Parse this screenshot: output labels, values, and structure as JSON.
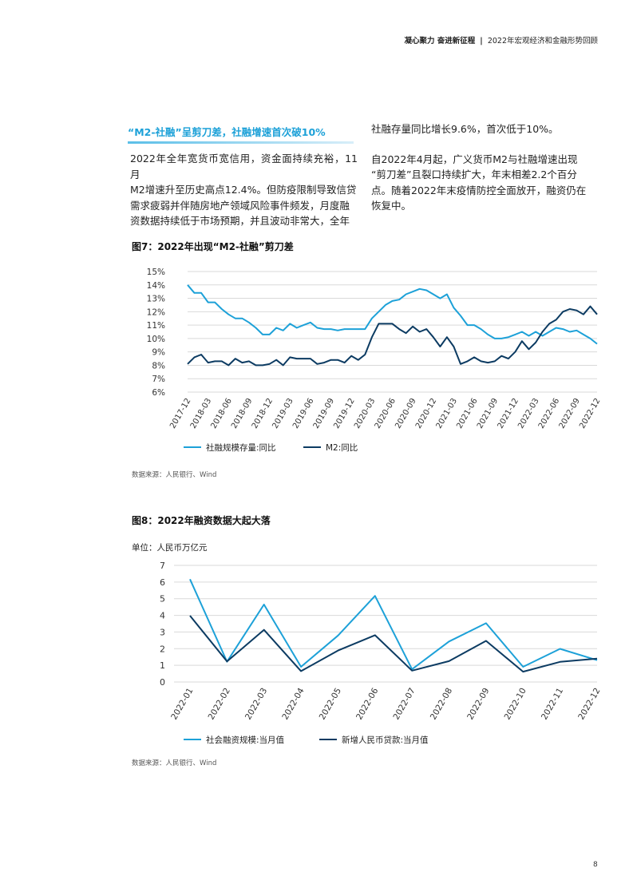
{
  "header": {
    "left": "凝心聚力 奋进新征程",
    "separator": "|",
    "right": "2022年宏观经济和金融形势回顾"
  },
  "section": {
    "title": "“M2-社融”呈剪刀差，社融增速首次破10%",
    "col1_lines": [
      "2022年全年宽货币宽信用，资金面持续充裕，11月",
      "M2增速升至历史高点12.4%。但防疫限制导致信贷",
      "需求疲弱并伴随房地产领域风险事件频发，月度融",
      "资数据持续低于市场预期，并且波动非常大，全年"
    ],
    "col2_lines": [
      "社融存量同比增长9.6%，首次低于10%。",
      "",
      "自2022年4月起，广义货币M2与社融增速出现",
      "“剪刀差”且裂口持续扩大，年末相差2.2个百分",
      "点。随着2022年末疫情防控全面放开，融资仍在",
      "恢复中。"
    ]
  },
  "figure7": {
    "title": "图7：2022年出现“M2-社融”剪刀差",
    "source": "数据来源：人民银行、Wind"
  },
  "figure8": {
    "title": "图8：2022年融资数据大起大落",
    "unit": "单位：人民币万亿元",
    "source": "数据来源：人民银行、Wind"
  },
  "page_number": "8",
  "colors": {
    "light_series": "#1da1d8",
    "dark_series": "#0c3b62",
    "grid": "#d9d9d9",
    "title_accent": "#1da1d8"
  },
  "chart_data": [
    {
      "type": "line",
      "title": "",
      "xlabel": "",
      "ylabel": "",
      "y_tick_labels": [
        "6%",
        "7%",
        "8%",
        "9%",
        "10%",
        "11%",
        "12%",
        "13%",
        "14%",
        "15%"
      ],
      "ylim": [
        6,
        15
      ],
      "x_tick_labels": [
        "2017-12",
        "2018-03",
        "2018-06",
        "2018-09",
        "2018-12",
        "2019-03",
        "2019-06",
        "2019-09",
        "2019-12",
        "2020-03",
        "2020-06",
        "2020-09",
        "2020-12",
        "2021-03",
        "2021-06",
        "2021-09",
        "2021-12",
        "2022-03",
        "2022-06",
        "2022-09",
        "2022-12"
      ],
      "x": [
        "2017-12",
        "2018-01",
        "2018-02",
        "2018-03",
        "2018-04",
        "2018-05",
        "2018-06",
        "2018-07",
        "2018-08",
        "2018-09",
        "2018-10",
        "2018-11",
        "2018-12",
        "2019-01",
        "2019-02",
        "2019-03",
        "2019-04",
        "2019-05",
        "2019-06",
        "2019-07",
        "2019-08",
        "2019-09",
        "2019-10",
        "2019-11",
        "2019-12",
        "2020-01",
        "2020-02",
        "2020-03",
        "2020-04",
        "2020-05",
        "2020-06",
        "2020-07",
        "2020-08",
        "2020-09",
        "2020-10",
        "2020-11",
        "2020-12",
        "2021-01",
        "2021-02",
        "2021-03",
        "2021-04",
        "2021-05",
        "2021-06",
        "2021-07",
        "2021-08",
        "2021-09",
        "2021-10",
        "2021-11",
        "2021-12",
        "2022-01",
        "2022-02",
        "2022-03",
        "2022-04",
        "2022-05",
        "2022-06",
        "2022-07",
        "2022-08",
        "2022-09",
        "2022-10",
        "2022-11",
        "2022-12"
      ],
      "grid": true,
      "legend": "bottom-left",
      "series": [
        {
          "name": "社融规模存量:同比",
          "color": "#1da1d8",
          "values": [
            14.0,
            13.4,
            13.4,
            12.7,
            12.7,
            12.2,
            11.8,
            11.5,
            11.5,
            11.2,
            10.8,
            10.3,
            10.3,
            10.8,
            10.6,
            11.1,
            10.8,
            11.0,
            11.2,
            10.8,
            10.7,
            10.7,
            10.6,
            10.7,
            10.7,
            10.7,
            10.7,
            11.5,
            12.0,
            12.5,
            12.8,
            12.9,
            13.3,
            13.5,
            13.7,
            13.6,
            13.3,
            13.0,
            13.3,
            12.3,
            11.7,
            11.0,
            11.0,
            10.7,
            10.3,
            10.0,
            10.0,
            10.1,
            10.3,
            10.5,
            10.2,
            10.5,
            10.2,
            10.5,
            10.8,
            10.7,
            10.5,
            10.6,
            10.3,
            10.0,
            9.6
          ]
        },
        {
          "name": "M2:同比",
          "color": "#0c3b62",
          "values": [
            8.1,
            8.6,
            8.8,
            8.2,
            8.3,
            8.3,
            8.0,
            8.5,
            8.2,
            8.3,
            8.0,
            8.0,
            8.1,
            8.4,
            8.0,
            8.6,
            8.5,
            8.5,
            8.5,
            8.1,
            8.2,
            8.4,
            8.4,
            8.2,
            8.7,
            8.4,
            8.8,
            10.1,
            11.1,
            11.1,
            11.1,
            10.7,
            10.4,
            10.9,
            10.5,
            10.7,
            10.1,
            9.4,
            10.1,
            9.4,
            8.1,
            8.3,
            8.6,
            8.3,
            8.2,
            8.3,
            8.7,
            8.5,
            9.0,
            9.8,
            9.2,
            9.7,
            10.5,
            11.1,
            11.4,
            12.0,
            12.2,
            12.1,
            11.8,
            12.4,
            11.8
          ]
        }
      ]
    },
    {
      "type": "line",
      "title": "",
      "xlabel": "",
      "ylabel": "",
      "ylim": [
        0,
        7
      ],
      "y_tick_labels": [
        "0",
        "1",
        "2",
        "3",
        "4",
        "5",
        "6",
        "7"
      ],
      "categories": [
        "2022-01",
        "2022-02",
        "2022-03",
        "2022-04",
        "2022-05",
        "2022-06",
        "2022-07",
        "2022-08",
        "2022-09",
        "2022-10",
        "2022-11",
        "2022-12"
      ],
      "grid": true,
      "legend": "bottom-left",
      "series": [
        {
          "name": "社会融资规模:当月值",
          "color": "#1da1d8",
          "values": [
            6.17,
            1.22,
            4.65,
            0.91,
            2.79,
            5.17,
            0.76,
            2.43,
            3.53,
            0.91,
            1.99,
            1.31
          ]
        },
        {
          "name": "新增人民币贷款:当月值",
          "color": "#0c3b62",
          "values": [
            3.98,
            1.23,
            3.13,
            0.65,
            1.89,
            2.81,
            0.68,
            1.25,
            2.47,
            0.62,
            1.21,
            1.4
          ]
        }
      ]
    }
  ]
}
